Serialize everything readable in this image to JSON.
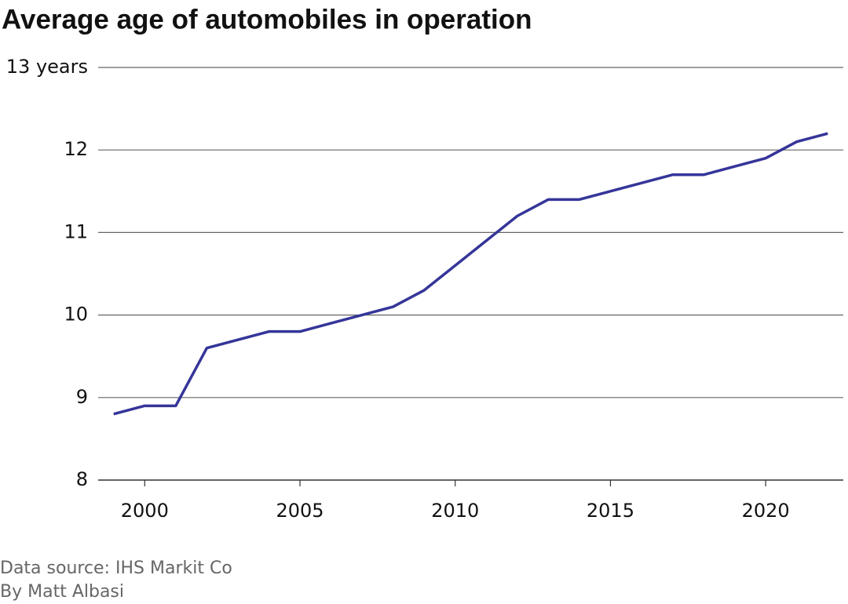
{
  "chart_data": {
    "type": "line",
    "title": "Average age of automobiles in operation",
    "source": "Data source: IHS Markit Co",
    "byline": "By Matt Albasi",
    "x": [
      1999,
      2000,
      2001,
      2002,
      2003,
      2004,
      2005,
      2006,
      2007,
      2008,
      2009,
      2010,
      2011,
      2012,
      2013,
      2014,
      2015,
      2016,
      2017,
      2018,
      2019,
      2020,
      2021,
      2022
    ],
    "values": [
      8.8,
      8.9,
      8.9,
      9.6,
      9.7,
      9.8,
      9.8,
      9.9,
      10.0,
      10.1,
      10.3,
      10.6,
      10.9,
      11.2,
      11.4,
      11.4,
      11.5,
      11.6,
      11.7,
      11.7,
      11.8,
      11.9,
      12.1,
      12.2
    ],
    "color": "#35359a",
    "xlim": [
      1998.5,
      2022.5
    ],
    "xticks": [
      2000,
      2005,
      2010,
      2015,
      2020
    ],
    "ylim": [
      8,
      13
    ],
    "yticks": [
      8,
      9,
      10,
      11,
      12,
      {
        "value": 13,
        "label": "13 years"
      }
    ],
    "grid": true
  }
}
